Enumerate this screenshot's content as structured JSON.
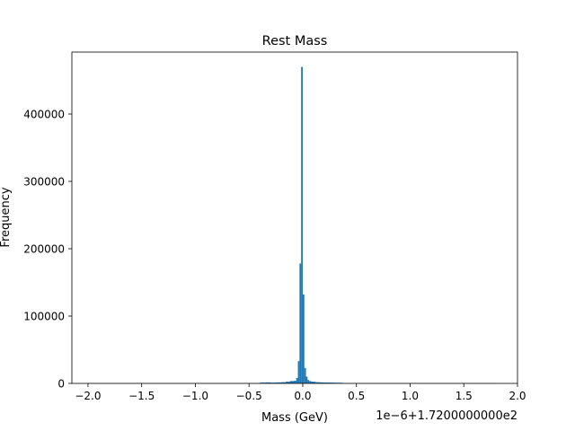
{
  "chart_data": {
    "type": "bar",
    "title": "Rest Mass",
    "xlabel": "Mass (GeV)",
    "ylabel": "Frequency",
    "offset_label": "1e−6+1.7200000000e2",
    "xlim": [
      -2.15,
      2.0
    ],
    "ylim": [
      0,
      492000
    ],
    "grid": false,
    "bar_color": "#1f77b4",
    "x_ticks": [
      {
        "value": -2.0,
        "label": "−2.0"
      },
      {
        "value": -1.5,
        "label": "−1.5"
      },
      {
        "value": -1.0,
        "label": "−1.0"
      },
      {
        "value": -0.5,
        "label": "−0.5"
      },
      {
        "value": 0.0,
        "label": "0.0"
      },
      {
        "value": 0.5,
        "label": "0.5"
      },
      {
        "value": 1.0,
        "label": "1.0"
      },
      {
        "value": 1.5,
        "label": "1.5"
      },
      {
        "value": 2.0,
        "label": "2.0"
      }
    ],
    "y_ticks": [
      {
        "value": 0,
        "label": "0"
      },
      {
        "value": 100000,
        "label": "100000"
      },
      {
        "value": 200000,
        "label": "200000"
      },
      {
        "value": 300000,
        "label": "300000"
      },
      {
        "value": 400000,
        "label": "400000"
      }
    ],
    "bars": [
      {
        "x0": -2.0,
        "x1": -0.4,
        "value": 300
      },
      {
        "x0": -0.4,
        "x1": -0.35,
        "value": 1200
      },
      {
        "x0": -0.35,
        "x1": -0.3,
        "value": 1500
      },
      {
        "x0": -0.3,
        "x1": -0.25,
        "value": 1200
      },
      {
        "x0": -0.25,
        "x1": -0.2,
        "value": 1500
      },
      {
        "x0": -0.2,
        "x1": -0.16,
        "value": 1800
      },
      {
        "x0": -0.16,
        "x1": -0.12,
        "value": 2500
      },
      {
        "x0": -0.12,
        "x1": -0.08,
        "value": 3500
      },
      {
        "x0": -0.08,
        "x1": -0.06,
        "value": 4000
      },
      {
        "x0": -0.06,
        "x1": -0.045,
        "value": 8000
      },
      {
        "x0": -0.045,
        "x1": -0.03,
        "value": 33000
      },
      {
        "x0": -0.03,
        "x1": -0.015,
        "value": 178000
      },
      {
        "x0": -0.015,
        "x1": 0.0,
        "value": 470000
      },
      {
        "x0": 0.0,
        "x1": 0.015,
        "value": 132000
      },
      {
        "x0": 0.015,
        "x1": 0.03,
        "value": 23000
      },
      {
        "x0": 0.03,
        "x1": 0.045,
        "value": 10000
      },
      {
        "x0": 0.045,
        "x1": 0.06,
        "value": 5000
      },
      {
        "x0": 0.06,
        "x1": 0.08,
        "value": 3500
      },
      {
        "x0": 0.08,
        "x1": 0.12,
        "value": 2500
      },
      {
        "x0": 0.12,
        "x1": 0.16,
        "value": 1800
      },
      {
        "x0": 0.16,
        "x1": 0.2,
        "value": 1500
      },
      {
        "x0": 0.2,
        "x1": 0.25,
        "value": 1300
      },
      {
        "x0": 0.25,
        "x1": 0.3,
        "value": 1200
      },
      {
        "x0": 0.3,
        "x1": 0.37,
        "value": 1000
      },
      {
        "x0": 0.37,
        "x1": 1.8,
        "value": 300
      }
    ]
  }
}
